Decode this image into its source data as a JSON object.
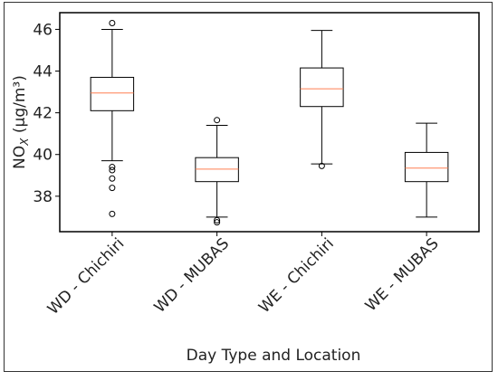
{
  "chart_data": {
    "type": "box",
    "xlabel": "Day Type and Location",
    "ylabel": "NO",
    "ylabel_subscript": "X",
    "ylabel_unit": " (µg/m³)",
    "ylim": [
      36.3,
      46.8
    ],
    "yticks": [
      38,
      40,
      42,
      44,
      46
    ],
    "grid": false,
    "colors": {
      "median": "#ff7f50",
      "box": "#000000"
    },
    "categories": [
      "WD - Chichiri",
      "WD - MUBAS",
      "WE - Chichiri",
      "WE - MUBAS"
    ],
    "boxes": [
      {
        "whisker_low": 39.7,
        "q1": 42.1,
        "median": 42.95,
        "q3": 43.7,
        "whisker_high": 46.0,
        "outliers": [
          46.3,
          39.4,
          39.25,
          38.85,
          38.4,
          37.15
        ]
      },
      {
        "whisker_low": 37.0,
        "q1": 38.7,
        "median": 39.3,
        "q3": 39.85,
        "whisker_high": 41.4,
        "outliers": [
          41.65,
          36.85,
          36.75
        ]
      },
      {
        "whisker_low": 39.55,
        "q1": 42.3,
        "median": 43.15,
        "q3": 44.15,
        "whisker_high": 45.95,
        "outliers": [
          39.45
        ]
      },
      {
        "whisker_low": 37.0,
        "q1": 38.7,
        "median": 39.35,
        "q3": 40.1,
        "whisker_high": 41.5,
        "outliers": []
      }
    ]
  }
}
